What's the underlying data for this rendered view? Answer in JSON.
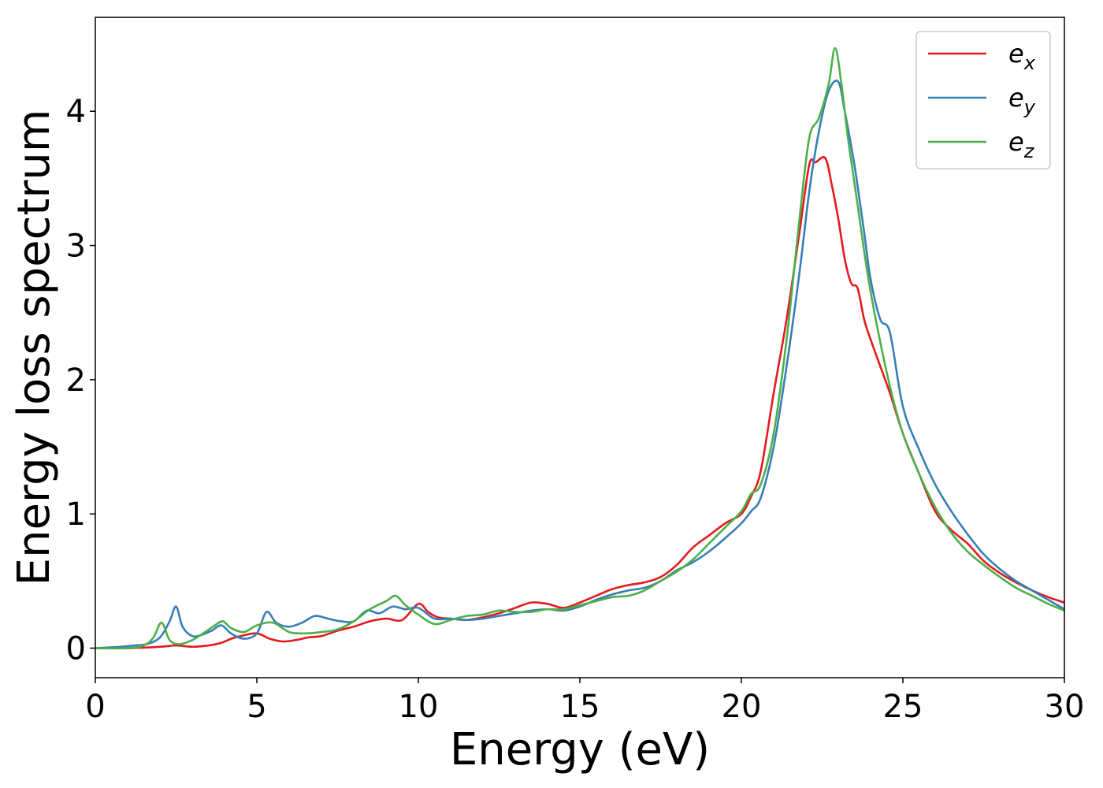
{
  "chart_data": {
    "type": "line",
    "title": "",
    "xlabel": "Energy (eV)",
    "ylabel": "Energy loss spectrum",
    "xlim": [
      0,
      30
    ],
    "ylim": [
      -0.22,
      4.7
    ],
    "xticks": [
      0,
      5,
      10,
      15,
      20,
      25,
      30
    ],
    "yticks": [
      0,
      1,
      2,
      3,
      4
    ],
    "grid": false,
    "legend_position": "top-right",
    "series": [
      {
        "name": "e_x",
        "label_base": "e",
        "label_sub": "x",
        "color": "#e41a1c",
        "x": [
          0,
          1,
          2,
          2.5,
          3,
          3.5,
          3.9,
          4.2,
          4.5,
          5,
          5.4,
          5.8,
          6.2,
          6.6,
          7,
          7.5,
          8,
          8.5,
          9,
          9.5,
          10,
          10.3,
          10.6,
          11,
          11.5,
          12,
          12.5,
          13,
          13.5,
          14,
          14.5,
          15,
          15.5,
          16,
          16.5,
          17,
          17.5,
          18,
          18.5,
          19,
          19.5,
          20,
          20.3,
          20.6,
          21,
          21.4,
          21.8,
          22.1,
          22.3,
          22.6,
          22.8,
          23,
          23.2,
          23.4,
          23.6,
          23.8,
          24,
          24.3,
          24.6,
          25,
          25.5,
          26,
          26.5,
          27,
          27.5,
          28,
          28.5,
          29,
          29.5,
          30
        ],
        "y": [
          0,
          0,
          0.01,
          0.02,
          0.01,
          0.02,
          0.04,
          0.07,
          0.09,
          0.11,
          0.07,
          0.05,
          0.06,
          0.08,
          0.09,
          0.13,
          0.16,
          0.2,
          0.22,
          0.21,
          0.33,
          0.27,
          0.23,
          0.22,
          0.21,
          0.23,
          0.26,
          0.3,
          0.34,
          0.33,
          0.3,
          0.34,
          0.39,
          0.44,
          0.47,
          0.49,
          0.53,
          0.62,
          0.75,
          0.84,
          0.93,
          1.0,
          1.13,
          1.32,
          1.9,
          2.45,
          3.1,
          3.6,
          3.62,
          3.65,
          3.45,
          3.2,
          2.9,
          2.72,
          2.68,
          2.45,
          2.3,
          2.1,
          1.9,
          1.6,
          1.3,
          1.02,
          0.88,
          0.78,
          0.65,
          0.56,
          0.49,
          0.43,
          0.38,
          0.34
        ]
      },
      {
        "name": "e_y",
        "label_base": "e",
        "label_sub": "y",
        "color": "#377eb8",
        "x": [
          0,
          0.8,
          1.2,
          1.6,
          2.0,
          2.3,
          2.5,
          2.7,
          3.0,
          3.3,
          3.6,
          3.9,
          4.2,
          4.6,
          5.0,
          5.3,
          5.6,
          6.0,
          6.4,
          6.8,
          7.2,
          7.6,
          8.0,
          8.4,
          8.8,
          9.2,
          9.6,
          10.0,
          10.5,
          11,
          11.5,
          12,
          12.5,
          13,
          13.5,
          14,
          14.5,
          15,
          15.5,
          16,
          16.5,
          17,
          17.5,
          18,
          18.5,
          19,
          19.5,
          20,
          20.3,
          20.6,
          21,
          21.4,
          21.8,
          22.1,
          22.4,
          22.7,
          23.0,
          23.2,
          23.5,
          23.8,
          24.0,
          24.3,
          24.6,
          25.0,
          25.5,
          26,
          26.5,
          27,
          27.5,
          28,
          28.5,
          29,
          29.5,
          30
        ],
        "y": [
          0,
          0.01,
          0.02,
          0.03,
          0.08,
          0.2,
          0.31,
          0.16,
          0.09,
          0.1,
          0.13,
          0.17,
          0.11,
          0.07,
          0.11,
          0.27,
          0.19,
          0.16,
          0.19,
          0.24,
          0.22,
          0.2,
          0.2,
          0.28,
          0.26,
          0.31,
          0.29,
          0.3,
          0.22,
          0.22,
          0.21,
          0.22,
          0.24,
          0.26,
          0.28,
          0.29,
          0.28,
          0.31,
          0.36,
          0.4,
          0.43,
          0.45,
          0.5,
          0.58,
          0.64,
          0.72,
          0.82,
          0.93,
          1.02,
          1.12,
          1.5,
          2.1,
          2.8,
          3.4,
          3.85,
          4.15,
          4.22,
          4.0,
          3.6,
          3.1,
          2.75,
          2.45,
          2.35,
          1.8,
          1.48,
          1.22,
          1.02,
          0.85,
          0.7,
          0.59,
          0.5,
          0.43,
          0.36,
          0.29
        ]
      },
      {
        "name": "e_z",
        "label_base": "e",
        "label_sub": "z",
        "color": "#4daf4a",
        "x": [
          0,
          1,
          1.5,
          1.8,
          2.05,
          2.3,
          2.6,
          3.0,
          3.4,
          3.7,
          3.95,
          4.2,
          4.6,
          5.0,
          5.5,
          6.0,
          6.5,
          7.0,
          7.5,
          8.0,
          8.5,
          9.0,
          9.3,
          9.6,
          10.0,
          10.5,
          11,
          11.5,
          12,
          12.5,
          13,
          13.5,
          14,
          14.5,
          15,
          15.5,
          16,
          16.5,
          17,
          17.5,
          18,
          18.5,
          19,
          19.5,
          20,
          20.3,
          20.6,
          21,
          21.4,
          21.8,
          22.1,
          22.4,
          22.7,
          22.9,
          23.1,
          23.3,
          23.6,
          23.9,
          24.2,
          24.6,
          25.0,
          25.5,
          26,
          26.5,
          27,
          27.5,
          28,
          28.5,
          29,
          29.5,
          30
        ],
        "y": [
          0,
          0,
          0.02,
          0.08,
          0.19,
          0.06,
          0.03,
          0.06,
          0.12,
          0.17,
          0.2,
          0.15,
          0.12,
          0.17,
          0.19,
          0.12,
          0.11,
          0.12,
          0.14,
          0.2,
          0.29,
          0.35,
          0.39,
          0.32,
          0.25,
          0.18,
          0.21,
          0.24,
          0.25,
          0.28,
          0.27,
          0.27,
          0.29,
          0.29,
          0.32,
          0.35,
          0.38,
          0.39,
          0.43,
          0.5,
          0.57,
          0.66,
          0.78,
          0.9,
          1.02,
          1.15,
          1.22,
          1.6,
          2.3,
          3.2,
          3.8,
          3.95,
          4.2,
          4.47,
          4.2,
          3.8,
          3.3,
          2.8,
          2.4,
          1.95,
          1.6,
          1.3,
          1.05,
          0.86,
          0.72,
          0.62,
          0.53,
          0.45,
          0.39,
          0.33,
          0.28
        ]
      }
    ]
  }
}
